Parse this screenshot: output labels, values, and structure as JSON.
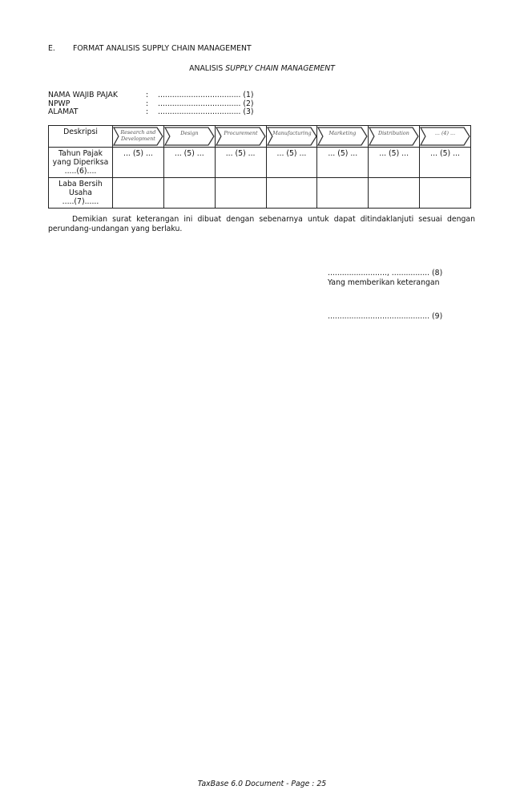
{
  "section": {
    "letter": "E.",
    "title": "FORMAT ANALISIS SUPPLY CHAIN MANAGEMENT"
  },
  "heading": {
    "prefix": "ANALISIS ",
    "italic": "SUPPLY CHAIN MANAGEMENT"
  },
  "fields": [
    {
      "label": "NAMA WAJIB PAJAK",
      "sep": ":",
      "value": "................................... (1)"
    },
    {
      "label": "NPWP",
      "sep": ":",
      "value": "................................... (2)"
    },
    {
      "label": "ALAMAT",
      "sep": ":",
      "value": "................................... (3)"
    }
  ],
  "table": {
    "corner": "Deskripsi",
    "stages": [
      [
        "Research and",
        "Development"
      ],
      [
        "Design"
      ],
      [
        "Procurement"
      ],
      [
        "Manufacturing"
      ],
      [
        "Marketing"
      ],
      [
        "Distribution"
      ],
      [
        "... (4) ..."
      ]
    ],
    "rows": [
      {
        "label": [
          "Tahun Pajak",
          "yang Diperiksa",
          ".....(6)...."
        ],
        "cells": [
          "... (5) ...",
          "... (5) ...",
          "... (5) ...",
          "... (5) ...",
          "... (5) ...",
          "... (5) ...",
          "... (5) ..."
        ]
      },
      {
        "label": [
          "Laba Bersih",
          "Usaha",
          ".....(7)......"
        ],
        "cells": [
          "",
          "",
          "",
          "",
          "",
          "",
          ""
        ]
      }
    ]
  },
  "paragraph": "Demikian surat keterangan ini dibuat dengan sebenarnya untuk dapat ditindaklanjuti sesuai dengan perundang-undangan yang berlaku.",
  "signature": {
    "place_date": "........................., ................ (8)",
    "giver": "Yang memberikan keterangan",
    "name": "........................................... (9)"
  },
  "footer": "TaxBase 6.0 Document - Page : 25"
}
